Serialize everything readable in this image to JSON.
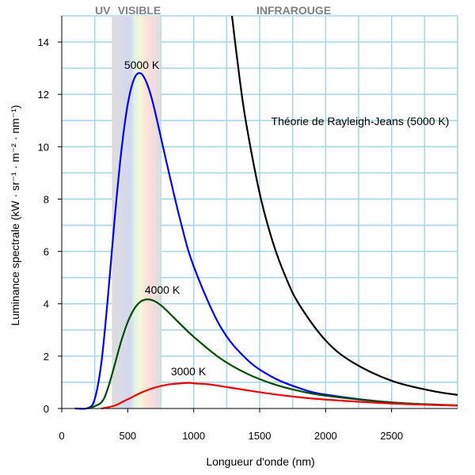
{
  "chart_data": {
    "type": "line",
    "xlabel": "Longueur d'onde (nm)",
    "ylabel": "Luminance spectrale (kW · sr⁻¹ · m⁻² · nm⁻¹)",
    "xlim": [
      0,
      3000
    ],
    "ylim": [
      0,
      15
    ],
    "xticks": [
      0,
      500,
      1000,
      1500,
      2000,
      2500
    ],
    "yticks": [
      0,
      2,
      4,
      6,
      8,
      10,
      12,
      14
    ],
    "grid": true,
    "grid_color": "#a9d6e5",
    "regions": [
      {
        "label": "UV",
        "range": [
          0,
          380
        ]
      },
      {
        "label": "VISIBLE",
        "range": [
          380,
          750
        ]
      },
      {
        "label": "INFRAROUGE",
        "range": [
          750,
          3000
        ]
      }
    ],
    "series": [
      {
        "name": "5000 K",
        "color": "#0000ee",
        "x": [
          100,
          200,
          250,
          300,
          350,
          400,
          450,
          500,
          550,
          600,
          650,
          700,
          800,
          900,
          1000,
          1200,
          1400,
          1600,
          1800,
          2000,
          2500,
          3000
        ],
        "y": [
          0.0,
          0.02,
          0.36,
          1.73,
          4.26,
          7.19,
          9.76,
          11.62,
          12.61,
          12.8,
          12.36,
          11.49,
          9.28,
          7.16,
          5.43,
          3.15,
          1.89,
          1.19,
          0.78,
          0.53,
          0.23,
          0.11
        ]
      },
      {
        "name": "4000 K",
        "color": "#004d00",
        "x": [
          200,
          300,
          350,
          400,
          450,
          500,
          550,
          600,
          650,
          700,
          750,
          800,
          900,
          1000,
          1200,
          1400,
          1600,
          1800,
          2000,
          2500,
          3000
        ],
        "y": [
          0.0,
          0.23,
          0.78,
          1.65,
          2.56,
          3.3,
          3.81,
          4.09,
          4.17,
          4.11,
          3.95,
          3.72,
          3.22,
          2.74,
          1.92,
          1.34,
          0.94,
          0.67,
          0.49,
          0.23,
          0.12
        ]
      },
      {
        "name": "3000 K",
        "color": "#ee0000",
        "x": [
          300,
          400,
          500,
          600,
          700,
          800,
          900,
          966,
          1000,
          1100,
          1200,
          1400,
          1600,
          1800,
          2000,
          2500,
          3000
        ],
        "y": [
          0.0,
          0.11,
          0.35,
          0.6,
          0.79,
          0.91,
          0.96,
          0.98,
          0.96,
          0.93,
          0.86,
          0.7,
          0.55,
          0.43,
          0.34,
          0.19,
          0.11
        ]
      },
      {
        "name": "Théorie de Rayleigh-Jeans (5000 K)",
        "color": "#000000",
        "x": [
          1290,
          1350,
          1400,
          1500,
          1600,
          1700,
          1800,
          2000,
          2200,
          2500,
          2800,
          3000
        ],
        "y": [
          15.0,
          12.53,
          10.83,
          8.22,
          6.35,
          4.99,
          3.97,
          2.6,
          1.78,
          1.06,
          0.68,
          0.52
        ]
      }
    ]
  }
}
